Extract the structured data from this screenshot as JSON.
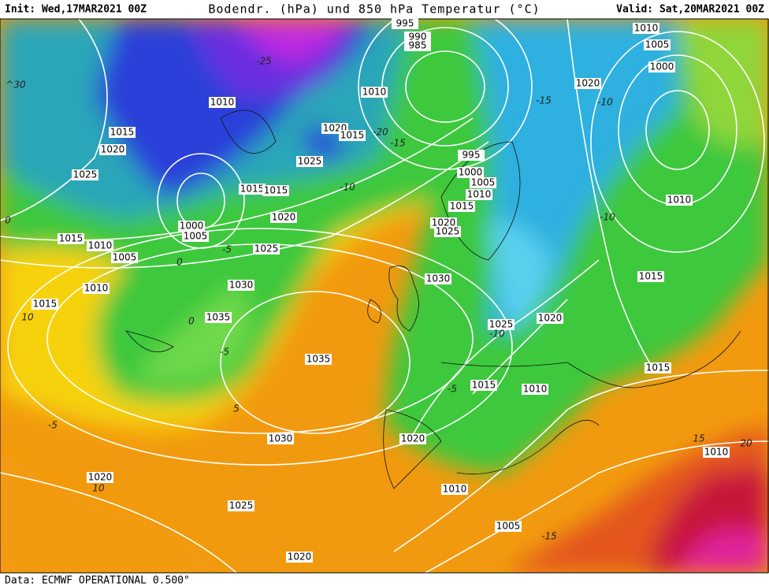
{
  "header": {
    "init": "Init: Wed,17MAR2021 00Z",
    "title": "Bodendr. (hPa) und 850 hPa Temperatur (°C)",
    "valid": "Valid: Sat,20MAR2021 00Z"
  },
  "footer": "Data: ECMWF OPERATIONAL 0.500°",
  "isobar_labels": [
    "995",
    "990",
    "985",
    "1010",
    "1010",
    "1015",
    "1020",
    "1025",
    "1020",
    "1015",
    "1025",
    "1015",
    "1015",
    "1000",
    "1005",
    "1020",
    "1015",
    "1010",
    "1005",
    "1025",
    "1010",
    "1030",
    "1015",
    "1035",
    "1035",
    "995",
    "1000",
    "1005",
    "1010",
    "1015",
    "1020",
    "1025",
    "1030",
    "1025",
    "1020",
    "1015",
    "1010",
    "1015",
    "1015",
    "1010",
    "1000",
    "1005",
    "1010",
    "1020",
    "1020",
    "1030",
    "1010",
    "1010",
    "1020",
    "1025",
    "1005",
    "1020"
  ],
  "temperature_labels": [
    "-25",
    "-20",
    "-15",
    "-10",
    "-5",
    "0",
    "-5",
    "0",
    "5",
    "-5",
    "10",
    "-10",
    "-5",
    "-10",
    "-10",
    "15",
    "20",
    "-15",
    "10",
    "-15",
    "^30",
    "0"
  ]
}
